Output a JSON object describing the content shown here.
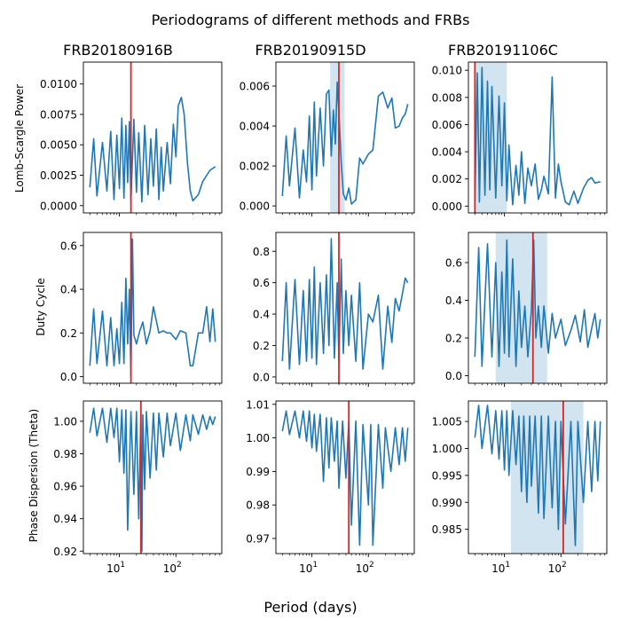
{
  "figure": {
    "suptitle": "Periodograms of different methods and FRBs",
    "xlabel": "Period (days)"
  },
  "colors": {
    "line": "#1f77b4",
    "marker": "#d62728",
    "band": "#1f77b4"
  },
  "columns": [
    "FRB20180916B",
    "FRB20190915D",
    "FRB20191106C"
  ],
  "rows": [
    "Lomb-Scargle Power",
    "Duty Cycle",
    "Phase Dispersion (Theta)"
  ],
  "chart_data": [
    {
      "type": "line",
      "method": "Lomb-Scargle Power",
      "frb": "FRB20180916B",
      "xscale": "log",
      "xlim": [
        2.3,
        650
      ],
      "ylim": [
        -0.0006,
        0.0118
      ],
      "yticks": [
        0.0,
        0.0025,
        0.005,
        0.0075,
        0.01
      ],
      "ytick_labels": [
        "0.0000",
        "0.0025",
        "0.0050",
        "0.0075",
        "0.0100"
      ],
      "xtick_labels": [],
      "x": [
        3,
        3.5,
        4,
        5,
        6,
        7,
        8,
        9,
        10,
        11,
        12,
        13,
        14,
        15,
        16,
        18,
        20,
        22,
        25,
        28,
        32,
        36,
        40,
        45,
        50,
        55,
        60,
        70,
        80,
        90,
        100,
        110,
        125,
        140,
        160,
        180,
        200,
        250,
        300,
        400,
        500
      ],
      "y": [
        0.0015,
        0.0055,
        0.0008,
        0.0052,
        0.0012,
        0.0061,
        0.0005,
        0.0058,
        0.0014,
        0.0072,
        0.0006,
        0.0066,
        0.0019,
        0.0069,
        0.0004,
        0.0071,
        0.0011,
        0.006,
        0.0003,
        0.0066,
        0.0009,
        0.0055,
        0.0016,
        0.0063,
        0.0005,
        0.0048,
        0.0012,
        0.0052,
        0.0018,
        0.0067,
        0.004,
        0.0082,
        0.0089,
        0.0075,
        0.0035,
        0.0012,
        0.0004,
        0.0009,
        0.002,
        0.0029,
        0.0032
      ],
      "marker_x": 16,
      "band": null
    },
    {
      "type": "line",
      "method": "Lomb-Scargle Power",
      "frb": "FRB20190915D",
      "xscale": "log",
      "xlim": [
        2.3,
        650
      ],
      "ylim": [
        -0.00035,
        0.0072
      ],
      "yticks": [
        0.0,
        0.002,
        0.004,
        0.006
      ],
      "ytick_labels": [
        "0.000",
        "0.002",
        "0.004",
        "0.006"
      ],
      "xtick_labels": [],
      "x": [
        3,
        3.5,
        4,
        5,
        6,
        7,
        8,
        9,
        10,
        11,
        12,
        14,
        16,
        18,
        20,
        22,
        24,
        26,
        28,
        30,
        33,
        36,
        40,
        45,
        50,
        60,
        70,
        80,
        100,
        120,
        150,
        180,
        220,
        260,
        300,
        350,
        400,
        450,
        500
      ],
      "y": [
        0.0005,
        0.0035,
        0.001,
        0.0039,
        0.0004,
        0.0028,
        0.0012,
        0.0045,
        0.0008,
        0.0052,
        0.0015,
        0.0049,
        0.002,
        0.0056,
        0.0058,
        0.0025,
        0.0048,
        0.0031,
        0.0062,
        0.0047,
        0.0022,
        0.0006,
        0.0003,
        0.0009,
        0.0001,
        0.0003,
        0.0024,
        0.0021,
        0.0026,
        0.0028,
        0.0055,
        0.0057,
        0.0049,
        0.0054,
        0.0039,
        0.004,
        0.0044,
        0.0046,
        0.0051
      ],
      "marker_x": 30,
      "band": [
        21,
        38
      ]
    },
    {
      "type": "line",
      "method": "Lomb-Scargle Power",
      "frb": "FRB20191106C",
      "xscale": "log",
      "xlim": [
        2.3,
        650
      ],
      "ylim": [
        -0.0005,
        0.0106
      ],
      "yticks": [
        0.0,
        0.002,
        0.004,
        0.006,
        0.008,
        0.01
      ],
      "ytick_labels": [
        "0.000",
        "0.002",
        "0.004",
        "0.006",
        "0.008",
        "0.010"
      ],
      "xtick_labels": [],
      "x": [
        3,
        3.3,
        3.6,
        4,
        4.5,
        5,
        5.5,
        6,
        7,
        8,
        9,
        10,
        11,
        12,
        14,
        16,
        18,
        20,
        23,
        26,
        30,
        35,
        40,
        45,
        50,
        60,
        70,
        80,
        90,
        100,
        120,
        140,
        170,
        200,
        250,
        300,
        350,
        400,
        500
      ],
      "y": [
        0.0005,
        0.0098,
        0.0003,
        0.0102,
        0.0008,
        0.0092,
        0.0012,
        0.0088,
        0.0006,
        0.0081,
        0.0015,
        0.0076,
        0.0004,
        0.0045,
        0.0001,
        0.003,
        0.0008,
        0.004,
        0.0002,
        0.0028,
        0.0015,
        0.0031,
        0.0005,
        0.0012,
        0.0022,
        0.0009,
        0.0095,
        0.0006,
        0.0031,
        0.0018,
        0.0003,
        0.0001,
        0.0011,
        0.0002,
        0.0013,
        0.0019,
        0.0021,
        0.0017,
        0.0018
      ],
      "marker_x": 3,
      "band": [
        3,
        11
      ]
    },
    {
      "type": "line",
      "method": "Duty Cycle",
      "frb": "FRB20180916B",
      "xscale": "log",
      "xlim": [
        2.3,
        650
      ],
      "ylim": [
        -0.03,
        0.66
      ],
      "yticks": [
        0.0,
        0.2,
        0.4,
        0.6
      ],
      "ytick_labels": [
        "0.0",
        "0.2",
        "0.4",
        "0.6"
      ],
      "xtick_labels": [],
      "x": [
        3,
        3.5,
        4,
        5,
        6,
        7,
        8,
        9,
        10,
        11,
        12,
        13,
        14,
        15,
        16,
        17,
        18,
        20,
        23,
        26,
        30,
        35,
        40,
        50,
        60,
        70,
        80,
        100,
        120,
        150,
        180,
        200,
        250,
        300,
        350,
        400,
        450,
        500
      ],
      "y": [
        0.05,
        0.31,
        0.06,
        0.3,
        0.05,
        0.27,
        0.05,
        0.22,
        0.06,
        0.34,
        0.06,
        0.45,
        0.15,
        0.4,
        0.0,
        0.63,
        0.19,
        0.15,
        0.21,
        0.25,
        0.15,
        0.21,
        0.32,
        0.2,
        0.21,
        0.2,
        0.2,
        0.17,
        0.21,
        0.2,
        0.05,
        0.05,
        0.2,
        0.2,
        0.32,
        0.16,
        0.31,
        0.16
      ],
      "marker_x": 16,
      "band": null
    },
    {
      "type": "line",
      "method": "Duty Cycle",
      "frb": "FRB20190915D",
      "xscale": "log",
      "xlim": [
        2.3,
        650
      ],
      "ylim": [
        -0.04,
        0.92
      ],
      "yticks": [
        0.0,
        0.2,
        0.4,
        0.6,
        0.8
      ],
      "ytick_labels": [
        "0.0",
        "0.2",
        "0.4",
        "0.6",
        "0.8"
      ],
      "xtick_labels": [],
      "x": [
        3,
        3.5,
        4,
        5,
        6,
        7,
        8,
        9,
        10,
        11,
        12,
        14,
        16,
        18,
        20,
        22,
        25,
        28,
        30,
        33,
        36,
        40,
        45,
        50,
        60,
        70,
        80,
        100,
        120,
        150,
        180,
        220,
        260,
        300,
        350,
        400,
        450,
        500
      ],
      "y": [
        0.1,
        0.6,
        0.05,
        0.62,
        0.08,
        0.55,
        0.1,
        0.62,
        0.12,
        0.7,
        0.08,
        0.6,
        0.15,
        0.65,
        0.2,
        0.88,
        0.12,
        0.6,
        0.1,
        0.75,
        0.15,
        0.55,
        0.2,
        0.52,
        0.1,
        0.6,
        0.05,
        0.4,
        0.35,
        0.52,
        0.05,
        0.45,
        0.22,
        0.5,
        0.42,
        0.53,
        0.63,
        0.6
      ],
      "marker_x": 30,
      "band": null
    },
    {
      "type": "line",
      "method": "Duty Cycle",
      "frb": "FRB20191106C",
      "xscale": "log",
      "xlim": [
        2.3,
        650
      ],
      "ylim": [
        -0.04,
        0.76
      ],
      "yticks": [
        0.0,
        0.2,
        0.4,
        0.6
      ],
      "ytick_labels": [
        "0.0",
        "0.2",
        "0.4",
        "0.6"
      ],
      "xtick_labels": [],
      "x": [
        3,
        3.5,
        4,
        5,
        6,
        7,
        8,
        9,
        10,
        11,
        12,
        14,
        16,
        18,
        20,
        23,
        26,
        30,
        33,
        36,
        40,
        45,
        50,
        60,
        70,
        80,
        100,
        120,
        150,
        180,
        220,
        260,
        300,
        350,
        400,
        450,
        500
      ],
      "y": [
        0.1,
        0.68,
        0.05,
        0.7,
        0.1,
        0.6,
        0.05,
        0.55,
        0.12,
        0.72,
        0.1,
        0.62,
        0.05,
        0.45,
        0.15,
        0.37,
        0.1,
        0.35,
        0.72,
        0.2,
        0.37,
        0.15,
        0.37,
        0.12,
        0.33,
        0.2,
        0.3,
        0.16,
        0.24,
        0.32,
        0.18,
        0.35,
        0.15,
        0.25,
        0.33,
        0.2,
        0.3
      ],
      "marker_x": 32,
      "band": [
        7,
        57
      ]
    },
    {
      "type": "line",
      "method": "Phase Dispersion (Theta)",
      "frb": "FRB20180916B",
      "xscale": "log",
      "xlim": [
        2.3,
        650
      ],
      "ylim": [
        0.9185,
        1.0125
      ],
      "yticks": [
        0.92,
        0.94,
        0.96,
        0.98,
        1.0
      ],
      "ytick_labels": [
        "0.92",
        "0.94",
        "0.96",
        "0.98",
        "1.00"
      ],
      "xtick_labels": [
        "10^1",
        "10^2"
      ],
      "x": [
        3,
        3.5,
        4,
        5,
        6,
        7,
        8,
        9,
        10,
        11,
        12,
        13,
        14,
        16,
        18,
        20,
        22,
        24,
        25,
        26,
        28,
        30,
        35,
        40,
        45,
        50,
        60,
        70,
        80,
        100,
        120,
        150,
        180,
        200,
        250,
        300,
        350,
        400,
        450,
        500
      ],
      "y": [
        0.993,
        1.008,
        0.991,
        1.008,
        0.987,
        1.008,
        0.99,
        1.008,
        0.975,
        1.007,
        0.968,
        1.007,
        0.933,
        1.006,
        0.955,
        1.006,
        0.94,
        1.005,
        0.92,
        1.004,
        0.958,
        1.006,
        0.965,
        1.005,
        0.97,
        1.005,
        0.978,
        1.005,
        0.985,
        1.005,
        0.982,
        1.004,
        0.988,
        1.004,
        0.992,
        1.004,
        0.995,
        1.003,
        0.998,
        1.003
      ],
      "marker_x": 24,
      "band": null
    },
    {
      "type": "line",
      "method": "Phase Dispersion (Theta)",
      "frb": "FRB20190915D",
      "xscale": "log",
      "xlim": [
        2.3,
        650
      ],
      "ylim": [
        0.9655,
        1.011
      ],
      "yticks": [
        0.97,
        0.98,
        0.99,
        1.0,
        1.01
      ],
      "ytick_labels": [
        "0.97",
        "0.98",
        "0.99",
        "1.00",
        "1.01"
      ],
      "xtick_labels": [
        "10^1",
        "10^2"
      ],
      "x": [
        3,
        3.5,
        4,
        5,
        6,
        7,
        8,
        9,
        10,
        11,
        12,
        14,
        16,
        18,
        20,
        22,
        25,
        28,
        30,
        35,
        40,
        45,
        50,
        60,
        70,
        80,
        100,
        110,
        120,
        150,
        180,
        200,
        250,
        300,
        350,
        400,
        450,
        500
      ],
      "y": [
        1.002,
        1.008,
        1.001,
        1.008,
        1.0,
        1.008,
        0.999,
        1.008,
        0.997,
        1.007,
        0.996,
        1.007,
        0.987,
        1.006,
        0.991,
        1.006,
        0.993,
        1.005,
        0.985,
        1.005,
        0.988,
        1.005,
        0.974,
        1.005,
        0.968,
        1.004,
        0.98,
        1.004,
        0.968,
        1.004,
        0.985,
        1.003,
        0.99,
        1.003,
        0.992,
        1.003,
        0.993,
        1.003
      ],
      "marker_x": 45,
      "band": null
    },
    {
      "type": "line",
      "method": "Phase Dispersion (Theta)",
      "frb": "FRB20191106C",
      "xscale": "log",
      "xlim": [
        2.3,
        650
      ],
      "ylim": [
        0.9805,
        1.0088
      ],
      "yticks": [
        0.985,
        0.99,
        0.995,
        1.0,
        1.005
      ],
      "ytick_labels": [
        "0.985",
        "0.990",
        "0.995",
        "1.000",
        "1.005"
      ],
      "xtick_labels": [
        "10^1",
        "10^2"
      ],
      "x": [
        3,
        3.5,
        4,
        5,
        6,
        7,
        8,
        9,
        10,
        11,
        12,
        14,
        16,
        18,
        20,
        22,
        25,
        28,
        30,
        35,
        40,
        45,
        50,
        60,
        70,
        80,
        90,
        100,
        120,
        150,
        180,
        200,
        250,
        300,
        350,
        400,
        450,
        500
      ],
      "y": [
        1.002,
        1.008,
        1.0,
        1.008,
        0.999,
        1.007,
        0.998,
        1.007,
        0.996,
        1.007,
        0.995,
        1.007,
        0.997,
        1.006,
        0.992,
        1.006,
        0.99,
        1.006,
        0.993,
        1.006,
        0.988,
        1.006,
        0.987,
        1.006,
        0.989,
        1.005,
        0.985,
        1.005,
        0.986,
        1.005,
        0.982,
        1.005,
        0.99,
        1.005,
        0.992,
        1.005,
        0.994,
        1.005
      ],
      "marker_x": 110,
      "band": [
        13,
        250
      ]
    }
  ]
}
